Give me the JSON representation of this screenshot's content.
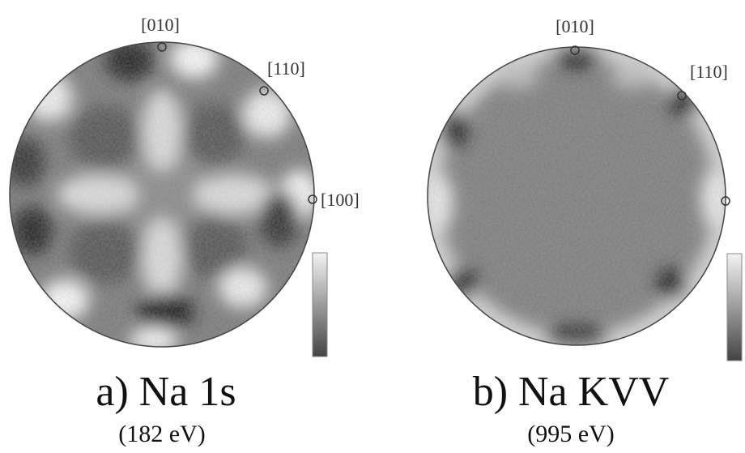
{
  "panels": [
    {
      "directions": [
        "[010]",
        "[110]",
        "[100]"
      ],
      "caption": "a) Na 1s",
      "energy": "(182 eV)"
    },
    {
      "directions": [
        "[010]",
        "[110]"
      ],
      "caption": "b) Na KVV",
      "energy": "(995 eV)"
    }
  ]
}
